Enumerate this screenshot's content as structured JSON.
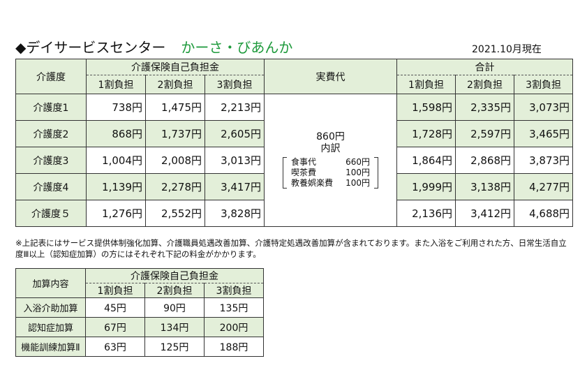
{
  "header": {
    "title": "◆デイサービスセンター",
    "facility": "かーさ・びあんか",
    "date": "2021.10月現在"
  },
  "main_table": {
    "col_care_level": "介護度",
    "col_insurance": "介護保険自己負担金",
    "col_actual": "実費代",
    "col_total": "合計",
    "sub": [
      "1割負担",
      "2割負担",
      "3割負担"
    ],
    "rows": [
      {
        "level": "介護度1",
        "ins": [
          "738円",
          "1,475円",
          "2,213円"
        ],
        "total": [
          "1,598円",
          "2,335円",
          "3,073円"
        ]
      },
      {
        "level": "介護度2",
        "ins": [
          "868円",
          "1,737円",
          "2,605円"
        ],
        "total": [
          "1,728円",
          "2,597円",
          "3,465円"
        ]
      },
      {
        "level": "介護度3",
        "ins": [
          "1,004円",
          "2,008円",
          "3,013円"
        ],
        "total": [
          "1,864円",
          "2,868円",
          "3,873円"
        ]
      },
      {
        "level": "介護度4",
        "ins": [
          "1,139円",
          "2,278円",
          "3,417円"
        ],
        "total": [
          "1,999円",
          "3,138円",
          "4,277円"
        ]
      },
      {
        "level": "介護度５",
        "ins": [
          "1,276円",
          "2,552円",
          "3,828円"
        ],
        "total": [
          "2,136円",
          "3,412円",
          "4,688円"
        ]
      }
    ],
    "actual": {
      "amount": "860円",
      "label": "内訳",
      "items": [
        {
          "name": "食事代",
          "value": "660円"
        },
        {
          "name": "喫茶費",
          "value": "100円"
        },
        {
          "name": "教養娯楽費",
          "value": "100円"
        }
      ]
    }
  },
  "note": "※上記表にはサービス提供体制強化加算、介護職員処遇改善加算、介護特定処遇改善加算が含まれております。また入浴をご利用された方、日常生活自立度Ⅲ以上（認知症加算）の方にはそれぞれ下記の料金がかかります。",
  "add_table": {
    "col_item": "加算内容",
    "col_insurance": "介護保険自己負担金",
    "sub": [
      "1割負担",
      "2割負担",
      "3割負担"
    ],
    "rows": [
      {
        "name": "入浴介助加算",
        "values": [
          "45円",
          "90円",
          "135円"
        ]
      },
      {
        "name": "認知症加算",
        "values": [
          "67円",
          "134円",
          "200円"
        ]
      },
      {
        "name": "機能訓練加算Ⅱ",
        "values": [
          "63円",
          "125円",
          "188円"
        ]
      }
    ]
  }
}
